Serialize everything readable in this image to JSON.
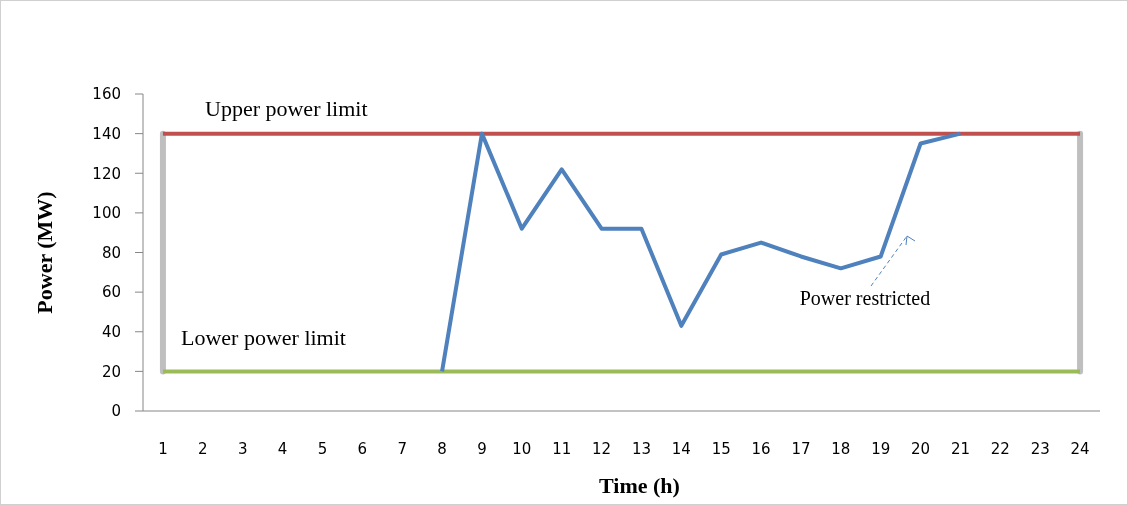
{
  "chart_data": {
    "type": "line",
    "xlabel": "Time (h)",
    "ylabel": "Power (MW)",
    "x": [
      1,
      2,
      3,
      4,
      5,
      6,
      7,
      8,
      9,
      10,
      11,
      12,
      13,
      14,
      15,
      16,
      17,
      18,
      19,
      20,
      21,
      22,
      23,
      24
    ],
    "xlim": [
      0.5,
      24.5
    ],
    "xticks": [
      1,
      2,
      3,
      4,
      5,
      6,
      7,
      8,
      9,
      10,
      11,
      12,
      13,
      14,
      15,
      16,
      17,
      18,
      19,
      20,
      21,
      22,
      23,
      24
    ],
    "ylim": [
      0,
      160
    ],
    "yticks": [
      0,
      20,
      40,
      60,
      80,
      100,
      120,
      140,
      160
    ],
    "marker": "none",
    "line_style": "solid",
    "series": [
      {
        "name": "Upper power limit",
        "color": "#c0504d",
        "values": [
          140,
          140,
          140,
          140,
          140,
          140,
          140,
          140,
          140,
          140,
          140,
          140,
          140,
          140,
          140,
          140,
          140,
          140,
          140,
          140,
          140,
          140,
          140,
          140
        ]
      },
      {
        "name": "Lower power limit",
        "color": "#9bbb59",
        "values": [
          20,
          20,
          20,
          20,
          20,
          20,
          20,
          20,
          20,
          20,
          20,
          20,
          20,
          20,
          20,
          20,
          20,
          20,
          20,
          20,
          20,
          20,
          20,
          20
        ]
      },
      {
        "color": "#4f81bd",
        "values": [
          null,
          null,
          null,
          null,
          null,
          null,
          null,
          20,
          140,
          92,
          122,
          92,
          92,
          43,
          79,
          85,
          78,
          72,
          78,
          135,
          140,
          null,
          null,
          null
        ]
      }
    ],
    "annotations": [
      "Power restricted"
    ]
  }
}
